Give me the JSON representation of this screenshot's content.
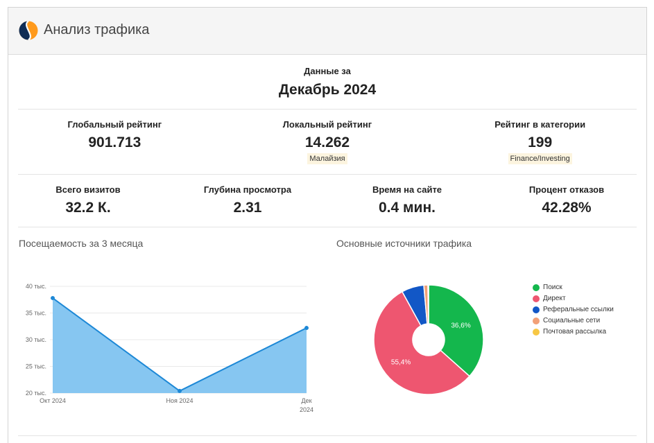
{
  "theme": {
    "header_bg": "#f5f5f5",
    "badge_bg": "#fcf4df"
  },
  "header": {
    "title": "Анализ трафика",
    "logo_icon": "similarweb-logo-icon"
  },
  "period": {
    "label": "Данные за",
    "value": "Декабрь 2024"
  },
  "rankings": [
    {
      "label": "Глобальный рейтинг",
      "value": "901.713"
    },
    {
      "label": "Локальный рейтинг",
      "value": "14.262",
      "badge": "Малайзия"
    },
    {
      "label": "Рейтинг в категории",
      "value": "199",
      "badge": "Finance/Investing"
    }
  ],
  "metrics": [
    {
      "label": "Всего визитов",
      "value": "32.2 К."
    },
    {
      "label": "Глубина просмотра",
      "value": "2.31"
    },
    {
      "label": "Время на сайте",
      "value": "0.4 мин."
    },
    {
      "label": "Процент отказов",
      "value": "42.28%"
    }
  ],
  "chart_data": [
    {
      "type": "area",
      "title": "Посещаемость за 3 месяца",
      "categories": [
        "Окт 2024",
        "Ноя 2024",
        "Дек 2024"
      ],
      "series": [
        {
          "values": [
            37800,
            20400,
            32200
          ],
          "color": "#1d88d6",
          "fill": "#86c6f1"
        }
      ],
      "ylim": [
        20000,
        40000
      ],
      "y_ticks": [
        {
          "value": 40000,
          "label": "40 тыс."
        },
        {
          "value": 35000,
          "label": "35 тыс."
        },
        {
          "value": 30000,
          "label": "30 тыс."
        },
        {
          "value": 25000,
          "label": "25 тыс."
        },
        {
          "value": 20000,
          "label": "20 тыс."
        }
      ],
      "grid": true
    },
    {
      "type": "pie",
      "donut": true,
      "title": "Основные источники трафика",
      "labels": [
        "Поиск",
        "Директ",
        "Реферальные ссылки",
        "Социальные сети",
        "Почтовая рассылка"
      ],
      "values": [
        36.6,
        55.4,
        6.6,
        1.2,
        0.2
      ],
      "data_labels": [
        "36,6%",
        "55,4%",
        "",
        "",
        ""
      ],
      "colors": [
        "#14b74d",
        "#ee5670",
        "#1257c6",
        "#f2a077",
        "#f7c744"
      ],
      "legend": "right"
    }
  ]
}
